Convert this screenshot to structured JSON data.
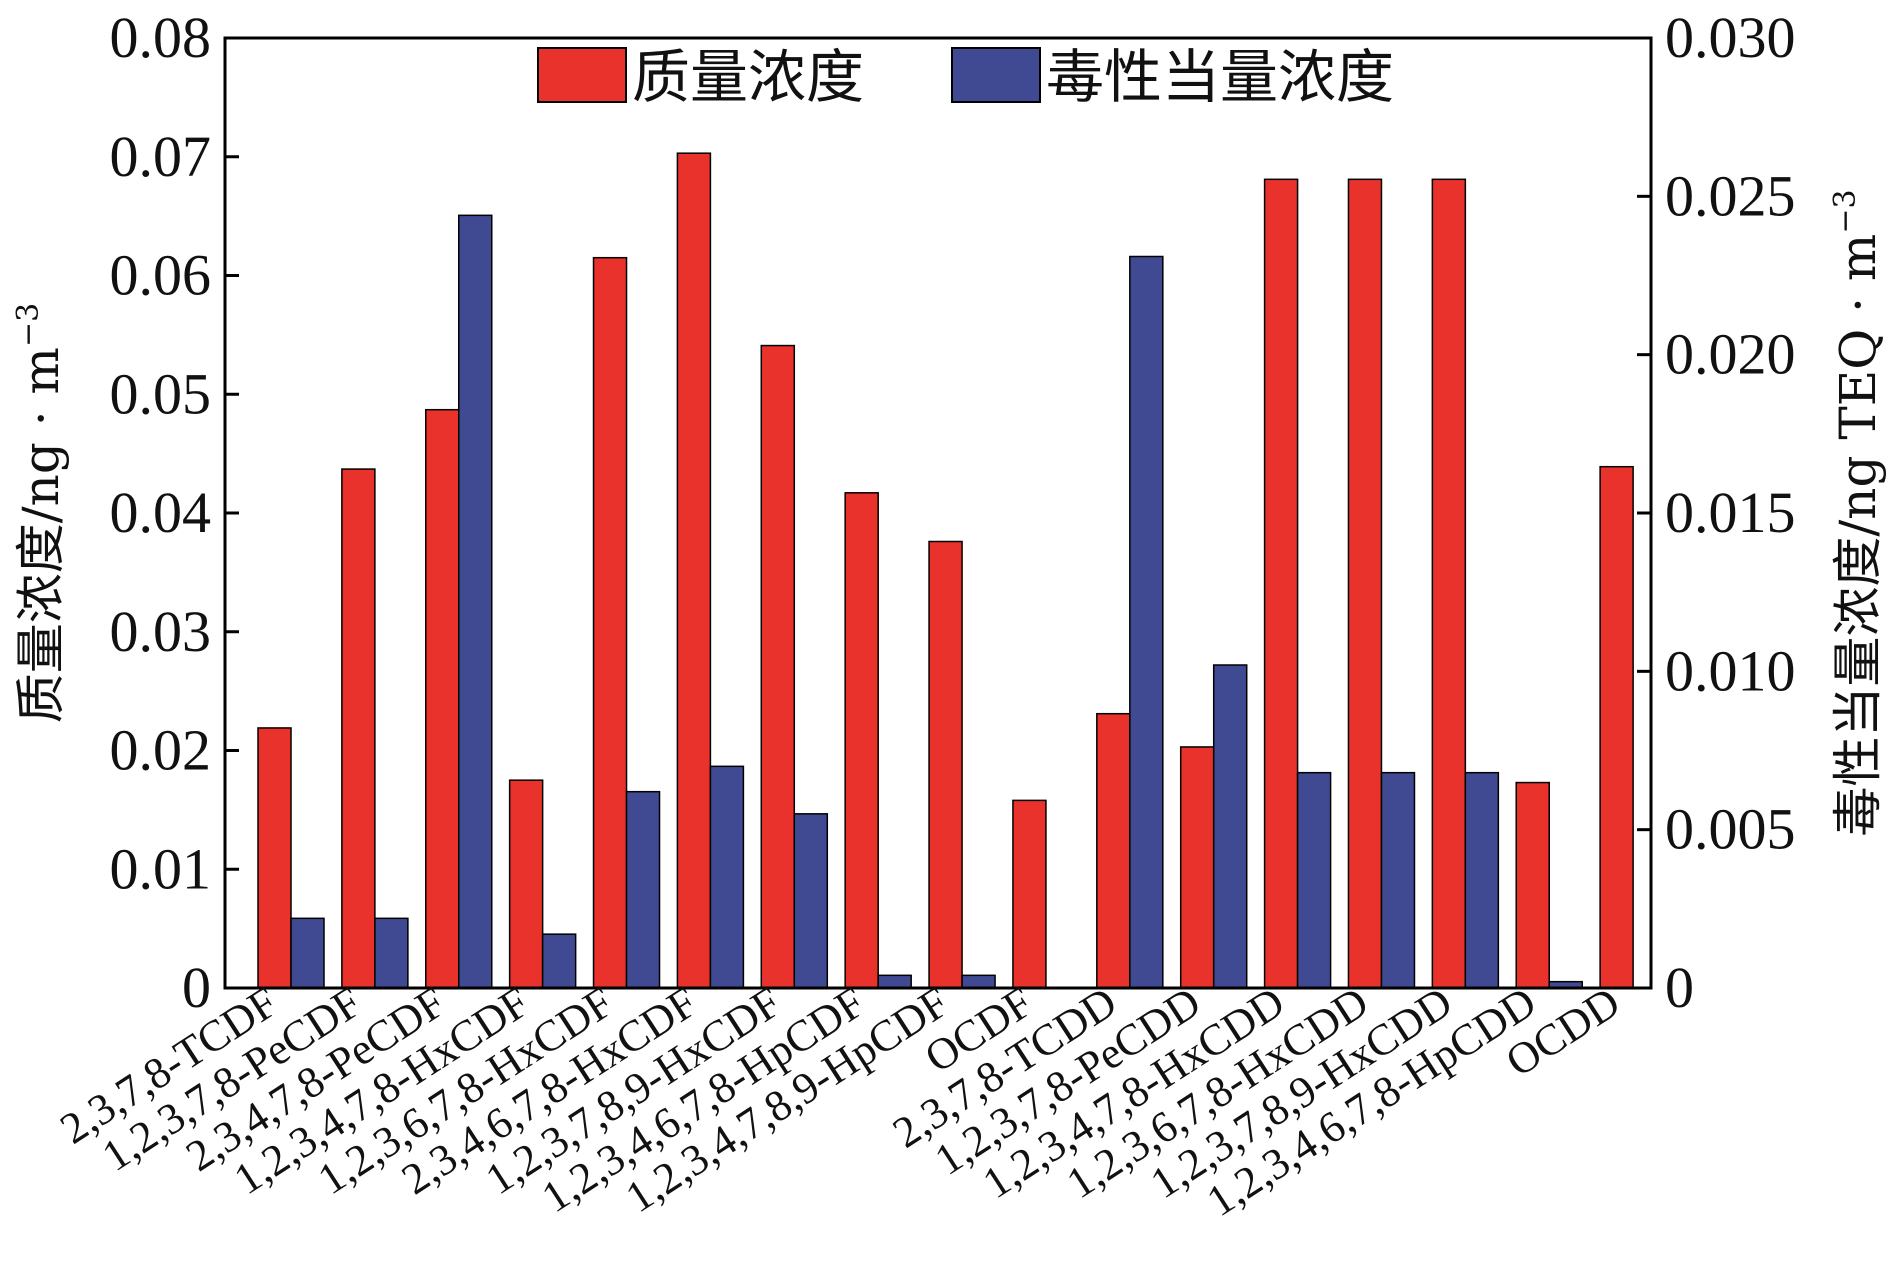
{
  "chart_data": {
    "type": "bar",
    "categories": [
      "2,3,7,8-TCDF",
      "1,2,3,7,8-PeCDF",
      "2,3,4,7,8-PeCDF",
      "1,2,3,4,7,8-HxCDF",
      "1,2,3,6,7,8-HxCDF",
      "2,3,4,6,7,8-HxCDF",
      "1,2,3,7,8,9-HxCDF",
      "1,2,3,4,6,7,8-HpCDF",
      "1,2,3,4,7,8,9-HpCDF",
      "OCDF",
      "2,3,7,8-TCDD",
      "1,2,3,7,8-PeCDD",
      "1,2,3,4,7,8-HxCDD",
      "1,2,3,6,7,8-HxCDD",
      "1,2,3,7,8,9-HxCDD",
      "1,2,3,4,6,7,8-HpCDD",
      "OCDD"
    ],
    "series": [
      {
        "name": "质量浓度",
        "axis": "left",
        "color": "#e8322b",
        "values": [
          0.0219,
          0.0437,
          0.0487,
          0.0175,
          0.0615,
          0.0703,
          0.0541,
          0.0417,
          0.0376,
          0.0158,
          0.0231,
          0.0203,
          0.0681,
          0.0681,
          0.0681,
          0.0173,
          0.0439
        ]
      },
      {
        "name": "毒性当量浓度",
        "axis": "right",
        "color": "#3f4a93",
        "values": [
          0.0022,
          0.0022,
          0.0244,
          0.0017,
          0.0062,
          0.007,
          0.0055,
          0.0004,
          0.0004,
          0.0,
          0.0231,
          0.0102,
          0.0068,
          0.0068,
          0.0068,
          0.0002,
          0.0
        ]
      }
    ],
    "ylabel": "质量浓度/ng · m",
    "ylabel_sup": "−3",
    "y2label": "毒性当量浓度/ng TEQ · m",
    "y2label_sup": "−3",
    "ylim": [
      0,
      0.08
    ],
    "y2lim": [
      0,
      0.03
    ],
    "yticks": [
      "0",
      "0.01",
      "0.02",
      "0.03",
      "0.04",
      "0.05",
      "0.06",
      "0.07",
      "0.08"
    ],
    "y2ticks": [
      "0",
      "0.005",
      "0.010",
      "0.015",
      "0.020",
      "0.025",
      "0.030"
    ],
    "legend": [
      "质量浓度",
      "毒性当量浓度"
    ],
    "legend_position": "top",
    "grid": false
  }
}
